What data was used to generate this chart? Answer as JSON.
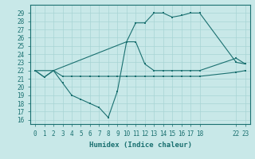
{
  "xlabel": "Humidex (Indice chaleur)",
  "bg_color": "#c8e8e8",
  "line_color": "#1a7070",
  "grid_color": "#a8d4d4",
  "ylim": [
    15.5,
    30
  ],
  "xlim": [
    -0.5,
    23.5
  ],
  "yticks": [
    16,
    17,
    18,
    19,
    20,
    21,
    22,
    23,
    24,
    25,
    26,
    27,
    28,
    29
  ],
  "xticks": [
    0,
    1,
    2,
    3,
    4,
    5,
    6,
    7,
    8,
    9,
    10,
    11,
    12,
    13,
    14,
    15,
    16,
    17,
    18,
    22,
    23
  ],
  "line1_x": [
    0,
    1,
    2,
    3,
    4,
    5,
    6,
    7,
    8,
    9,
    10,
    11,
    12,
    13,
    14,
    15,
    16,
    17,
    18,
    22,
    23
  ],
  "line1_y": [
    22,
    21.2,
    22,
    21.3,
    21.3,
    21.3,
    21.3,
    21.3,
    21.3,
    21.3,
    21.3,
    21.3,
    21.3,
    21.3,
    21.3,
    21.3,
    21.3,
    21.3,
    21.3,
    21.8,
    22
  ],
  "line2_x": [
    0,
    2,
    10,
    11,
    12,
    13,
    14,
    15,
    16,
    17,
    18,
    22,
    23
  ],
  "line2_y": [
    22,
    22,
    25.5,
    27.8,
    27.8,
    29,
    29,
    28.5,
    28.7,
    29,
    29,
    23,
    22.8
  ],
  "line3_x": [
    0,
    1,
    2,
    3,
    4,
    5,
    6,
    7,
    8,
    9,
    10,
    11,
    12,
    13,
    14,
    15,
    16,
    17,
    18,
    22,
    23
  ],
  "line3_y": [
    22,
    21.2,
    22,
    20.5,
    19,
    18.5,
    18,
    17.5,
    16.3,
    19.5,
    25.5,
    25.5,
    22.8,
    22,
    22,
    22,
    22,
    22,
    22,
    23.5,
    22.8
  ]
}
